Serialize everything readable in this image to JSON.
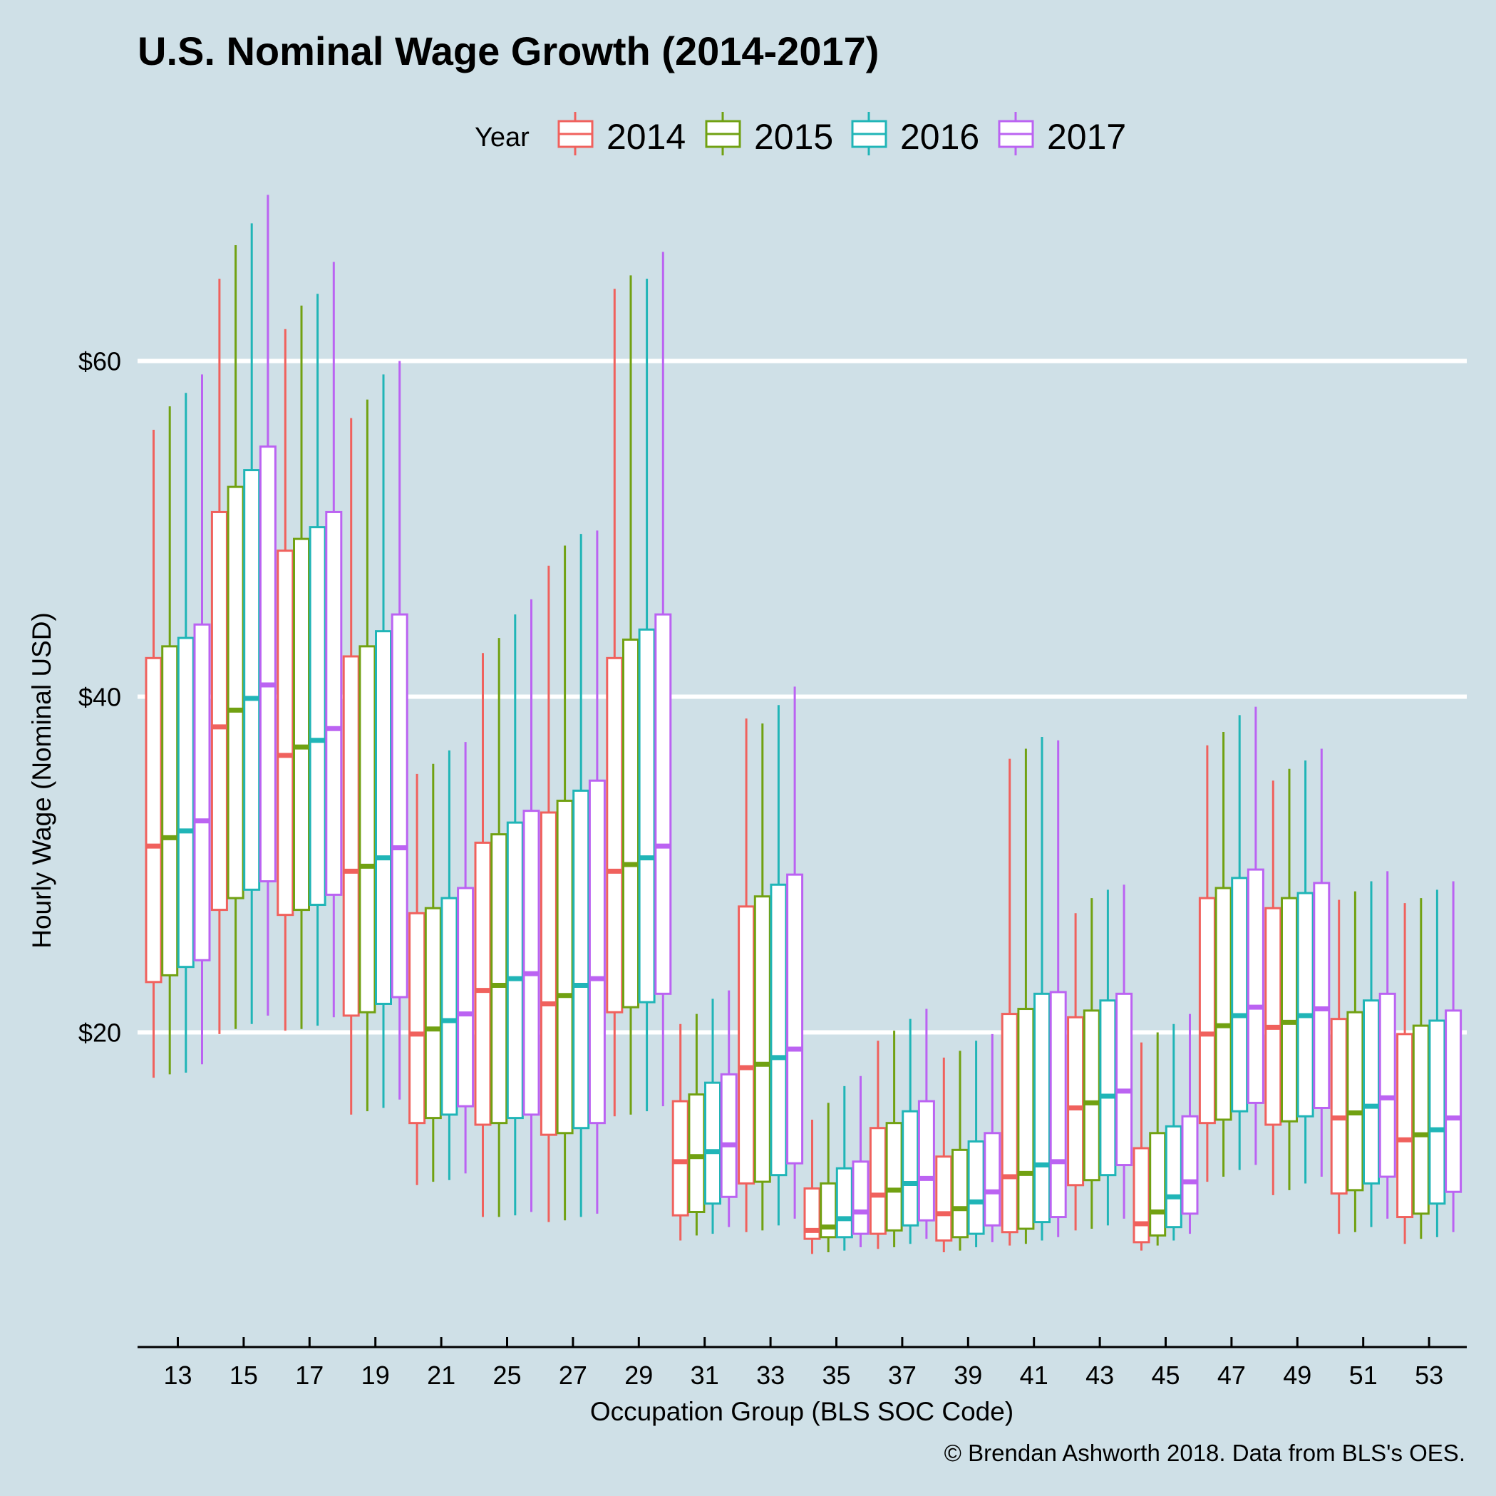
{
  "chart_data": {
    "type": "boxplot",
    "title": "U.S. Nominal Wage Growth (2014-2017)",
    "xlabel": "Occupation Group (BLS SOC Code)",
    "ylabel": "Hourly Wage (Nominal USD)",
    "caption": "© Brendan Ashworth 2018. Data from BLS's OES.",
    "legend_title": "Year",
    "legend_position": "top",
    "grid": "horizontal major lines (white)",
    "ylim": [
      4.5,
      70.5
    ],
    "yticks": [
      {
        "value": 20,
        "label": "$20"
      },
      {
        "value": 40,
        "label": "$40"
      },
      {
        "value": 60,
        "label": "$60"
      }
    ],
    "categories": [
      "13",
      "15",
      "17",
      "19",
      "21",
      "25",
      "27",
      "29",
      "31",
      "33",
      "35",
      "37",
      "39",
      "41",
      "43",
      "45",
      "47",
      "49",
      "51",
      "53"
    ],
    "series": [
      {
        "name": "2014",
        "color": "#f0615d",
        "boxes": [
          [
            17.3,
            23.0,
            31.1,
            42.3,
            55.9
          ],
          [
            19.9,
            27.3,
            38.2,
            51.0,
            64.9
          ],
          [
            20.1,
            27.0,
            36.5,
            48.7,
            61.9
          ],
          [
            15.1,
            21.0,
            29.6,
            42.4,
            56.6
          ],
          [
            10.9,
            14.6,
            19.9,
            27.1,
            35.4
          ],
          [
            9.0,
            14.5,
            22.5,
            31.3,
            42.6
          ],
          [
            8.7,
            13.9,
            21.7,
            33.1,
            47.8
          ],
          [
            15.0,
            21.2,
            29.6,
            42.3,
            64.3
          ],
          [
            7.6,
            9.1,
            12.3,
            15.9,
            20.5
          ],
          [
            8.1,
            11.0,
            17.9,
            27.5,
            38.7
          ],
          [
            6.8,
            7.7,
            8.2,
            10.7,
            14.8
          ],
          [
            7.1,
            8.0,
            10.3,
            14.3,
            19.5
          ],
          [
            6.9,
            7.6,
            9.2,
            12.6,
            18.5
          ],
          [
            7.3,
            8.1,
            11.4,
            21.1,
            36.3
          ],
          [
            8.2,
            10.9,
            15.5,
            20.9,
            27.1
          ],
          [
            7.0,
            7.5,
            8.6,
            13.1,
            19.4
          ],
          [
            11.1,
            14.6,
            19.9,
            28.0,
            37.1
          ],
          [
            10.3,
            14.5,
            20.3,
            27.4,
            35.0
          ],
          [
            8.0,
            10.4,
            14.9,
            20.8,
            27.9
          ],
          [
            7.4,
            9.0,
            13.6,
            19.9,
            27.7
          ]
        ]
      },
      {
        "name": "2015",
        "color": "#71a112",
        "boxes": [
          [
            17.5,
            23.4,
            31.6,
            43.0,
            57.3
          ],
          [
            20.2,
            28.0,
            39.2,
            52.5,
            66.9
          ],
          [
            20.2,
            27.3,
            37.0,
            49.4,
            63.3
          ],
          [
            15.3,
            21.2,
            29.9,
            43.0,
            57.7
          ],
          [
            11.1,
            14.9,
            20.2,
            27.4,
            36.0
          ],
          [
            9.0,
            14.6,
            22.8,
            31.8,
            43.5
          ],
          [
            8.8,
            14.0,
            22.2,
            33.8,
            49.0
          ],
          [
            15.1,
            21.5,
            30.0,
            43.4,
            65.1
          ],
          [
            7.9,
            9.3,
            12.6,
            16.3,
            21.1
          ],
          [
            8.2,
            11.1,
            18.1,
            28.1,
            38.4
          ],
          [
            6.9,
            7.8,
            8.4,
            11.0,
            15.8
          ],
          [
            7.2,
            8.2,
            10.6,
            14.6,
            20.1
          ],
          [
            7.0,
            7.8,
            9.5,
            13.0,
            18.9
          ],
          [
            7.4,
            8.3,
            11.6,
            21.4,
            36.9
          ],
          [
            8.3,
            11.2,
            15.8,
            21.3,
            28.0
          ],
          [
            7.3,
            7.9,
            9.3,
            14.0,
            20.0
          ],
          [
            11.4,
            14.8,
            20.4,
            28.6,
            37.9
          ],
          [
            10.6,
            14.7,
            20.6,
            28.0,
            35.7
          ],
          [
            8.1,
            10.6,
            15.2,
            21.2,
            28.4
          ],
          [
            7.7,
            9.2,
            13.9,
            20.4,
            28.0
          ]
        ]
      },
      {
        "name": "2016",
        "color": "#20b5b7",
        "boxes": [
          [
            17.6,
            23.9,
            32.0,
            43.5,
            58.1
          ],
          [
            20.5,
            28.5,
            39.9,
            53.5,
            68.2
          ],
          [
            20.4,
            27.6,
            37.4,
            50.1,
            64.0
          ],
          [
            15.5,
            21.7,
            30.4,
            43.9,
            59.2
          ],
          [
            11.2,
            15.1,
            20.7,
            28.0,
            36.8
          ],
          [
            9.1,
            14.9,
            23.2,
            32.5,
            44.9
          ],
          [
            9.0,
            14.3,
            22.8,
            34.4,
            49.7
          ],
          [
            15.3,
            21.8,
            30.4,
            44.0,
            64.9
          ],
          [
            8.0,
            9.8,
            12.9,
            17.0,
            22.0
          ],
          [
            8.5,
            11.5,
            18.5,
            28.8,
            39.5
          ],
          [
            7.0,
            7.8,
            8.9,
            11.9,
            16.8
          ],
          [
            7.4,
            8.5,
            11.0,
            15.3,
            20.8
          ],
          [
            7.2,
            8.0,
            9.9,
            13.5,
            19.5
          ],
          [
            7.6,
            8.7,
            12.1,
            22.3,
            37.6
          ],
          [
            8.5,
            11.5,
            16.2,
            21.9,
            28.5
          ],
          [
            7.6,
            8.4,
            10.2,
            14.4,
            20.5
          ],
          [
            11.8,
            15.3,
            21.0,
            29.2,
            38.9
          ],
          [
            11.0,
            15.0,
            21.0,
            28.3,
            36.2
          ],
          [
            8.4,
            11.0,
            15.6,
            21.9,
            29.0
          ],
          [
            7.8,
            9.8,
            14.2,
            20.7,
            28.5
          ]
        ]
      },
      {
        "name": "2017",
        "color": "#bb63f2",
        "boxes": [
          [
            18.1,
            24.3,
            32.6,
            44.3,
            59.2
          ],
          [
            21.0,
            29.0,
            40.7,
            54.9,
            69.9
          ],
          [
            20.9,
            28.2,
            38.1,
            51.0,
            65.9
          ],
          [
            16.0,
            22.1,
            31.0,
            44.9,
            60.0
          ],
          [
            11.6,
            15.6,
            21.1,
            28.6,
            37.3
          ],
          [
            9.3,
            15.1,
            23.5,
            33.2,
            45.8
          ],
          [
            9.2,
            14.6,
            23.2,
            35.0,
            49.9
          ],
          [
            15.6,
            22.3,
            31.1,
            44.9,
            66.5
          ],
          [
            8.4,
            10.2,
            13.3,
            17.5,
            22.5
          ],
          [
            8.9,
            12.2,
            19.0,
            29.4,
            40.6
          ],
          [
            7.2,
            8.0,
            9.3,
            12.3,
            17.4
          ],
          [
            7.7,
            8.8,
            11.3,
            15.9,
            21.4
          ],
          [
            7.5,
            8.5,
            10.5,
            14.0,
            19.9
          ],
          [
            7.8,
            9.0,
            12.3,
            22.4,
            37.4
          ],
          [
            8.9,
            12.1,
            16.5,
            22.3,
            28.8
          ],
          [
            8.0,
            9.2,
            11.1,
            15.0,
            21.1
          ],
          [
            12.1,
            15.8,
            21.5,
            29.7,
            39.4
          ],
          [
            11.4,
            15.5,
            21.4,
            28.9,
            36.9
          ],
          [
            8.9,
            11.4,
            16.1,
            22.3,
            29.6
          ],
          [
            8.1,
            10.5,
            14.9,
            21.3,
            29.0
          ]
        ],
        "box_fields": [
          "whisker_low",
          "q1",
          "median",
          "q3",
          "whisker_high"
        ]
      }
    ]
  }
}
